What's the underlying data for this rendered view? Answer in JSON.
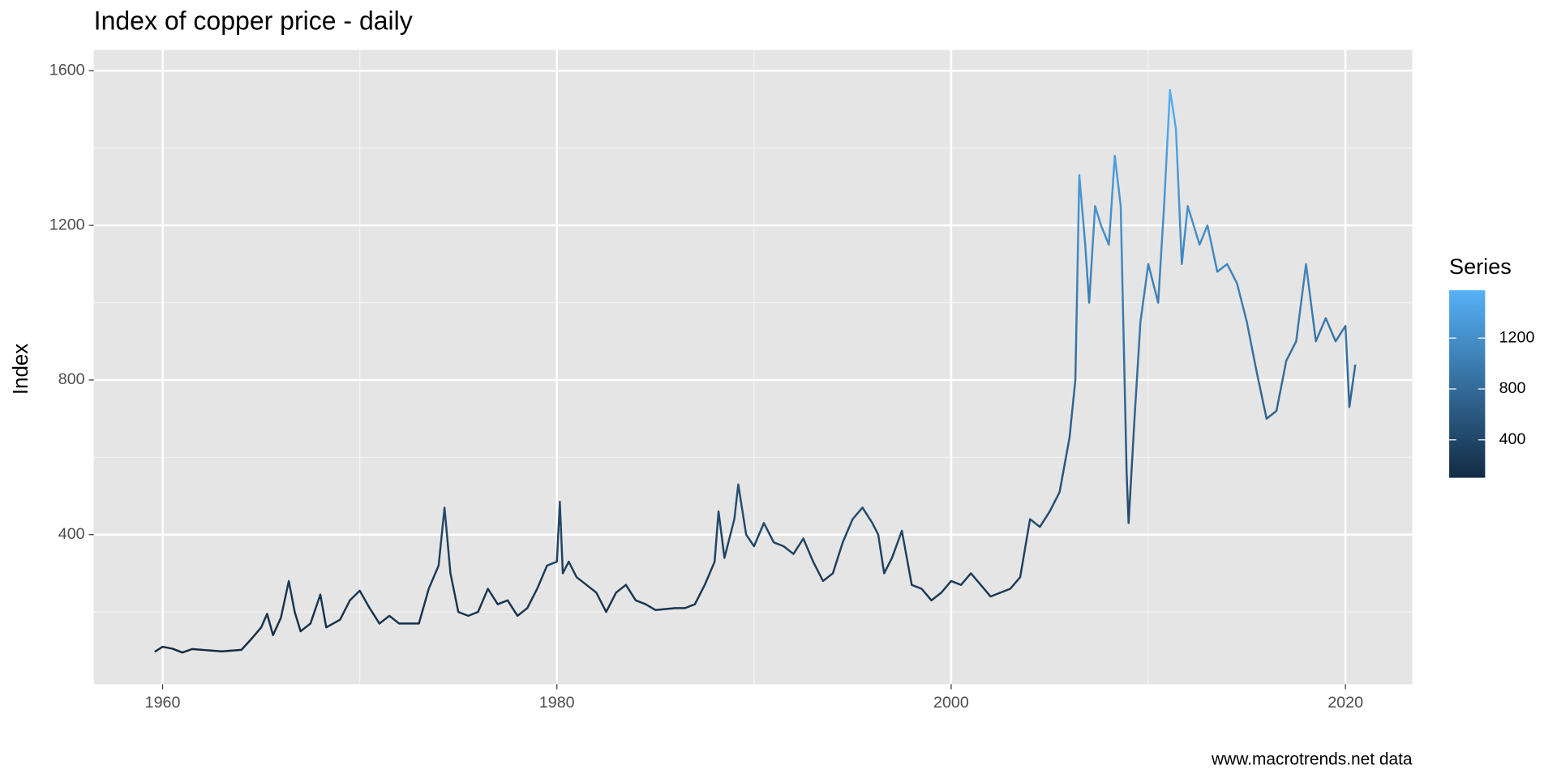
{
  "chart_data": {
    "type": "line",
    "title": "Index of copper price - daily",
    "ylabel": "Index",
    "caption": "www.macrotrends.net data",
    "x": [
      1959.6,
      1960.0,
      1960.5,
      1961,
      1961.5,
      1962,
      1963,
      1964,
      1964.5,
      1965,
      1965.3,
      1965.6,
      1966,
      1966.4,
      1966.7,
      1967,
      1967.5,
      1968,
      1968.3,
      1969,
      1969.5,
      1970,
      1970.5,
      1971,
      1971.5,
      1972,
      1973,
      1973.5,
      1974,
      1974.3,
      1974.6,
      1975,
      1975.5,
      1976,
      1976.5,
      1977,
      1977.5,
      1978,
      1978.5,
      1979,
      1979.5,
      1980,
      1980.15,
      1980.3,
      1980.6,
      1981,
      1981.5,
      1982,
      1982.5,
      1983,
      1983.5,
      1984,
      1984.5,
      1985,
      1986,
      1986.5,
      1987,
      1987.5,
      1988,
      1988.2,
      1988.5,
      1989,
      1989.2,
      1989.6,
      1990,
      1990.5,
      1991,
      1991.5,
      1992,
      1992.5,
      1993,
      1993.5,
      1994,
      1994.5,
      1995,
      1995.5,
      1996,
      1996.3,
      1996.6,
      1997,
      1997.5,
      1998,
      1998.5,
      1999,
      1999.5,
      2000,
      2000.5,
      2001,
      2001.5,
      2002,
      2002.5,
      2003,
      2003.5,
      2004,
      2004.5,
      2005,
      2005.5,
      2006,
      2006.3,
      2006.5,
      2006.8,
      2007,
      2007.3,
      2007.6,
      2008,
      2008.3,
      2008.6,
      2008.9,
      2009.0,
      2009.3,
      2009.6,
      2010,
      2010.5,
      2010.8,
      2011.1,
      2011.4,
      2011.7,
      2012,
      2012.3,
      2012.6,
      2013,
      2013.5,
      2014,
      2014.5,
      2015,
      2015.5,
      2016,
      2016.5,
      2017,
      2017.5,
      2018,
      2018.5,
      2019,
      2019.5,
      2020,
      2020.2,
      2020.5
    ],
    "values": [
      97,
      110,
      105,
      95,
      104,
      102,
      98,
      102,
      130,
      160,
      195,
      140,
      185,
      280,
      200,
      150,
      170,
      245,
      160,
      180,
      230,
      255,
      210,
      170,
      190,
      170,
      170,
      260,
      320,
      470,
      300,
      200,
      190,
      200,
      260,
      220,
      230,
      190,
      210,
      260,
      320,
      330,
      485,
      300,
      330,
      290,
      270,
      250,
      200,
      250,
      270,
      230,
      220,
      205,
      210,
      210,
      220,
      270,
      330,
      460,
      340,
      440,
      530,
      400,
      370,
      430,
      380,
      370,
      350,
      390,
      330,
      280,
      300,
      380,
      440,
      470,
      430,
      400,
      300,
      340,
      410,
      270,
      260,
      230,
      250,
      280,
      270,
      300,
      270,
      240,
      250,
      260,
      290,
      440,
      420,
      460,
      510,
      650,
      800,
      1330,
      1150,
      1000,
      1250,
      1200,
      1150,
      1380,
      1250,
      560,
      430,
      700,
      950,
      1100,
      1000,
      1250,
      1550,
      1450,
      1100,
      1250,
      1200,
      1150,
      1200,
      1080,
      1100,
      1050,
      950,
      820,
      700,
      720,
      850,
      900,
      1100,
      900,
      960,
      900,
      940,
      730,
      840
    ],
    "xlim": [
      1956.51,
      2023.39
    ],
    "xticks": [
      1960,
      1980,
      2000,
      2020
    ],
    "ylim": [
      13,
      1654
    ],
    "yticks": [
      400,
      800,
      1200,
      1600
    ],
    "grid": true,
    "color_scale": {
      "title": "Series",
      "low": "#132B43",
      "high": "#56B1F7",
      "limits": [
        102,
        1576
      ],
      "ticks": [
        400,
        800,
        1200
      ]
    }
  }
}
